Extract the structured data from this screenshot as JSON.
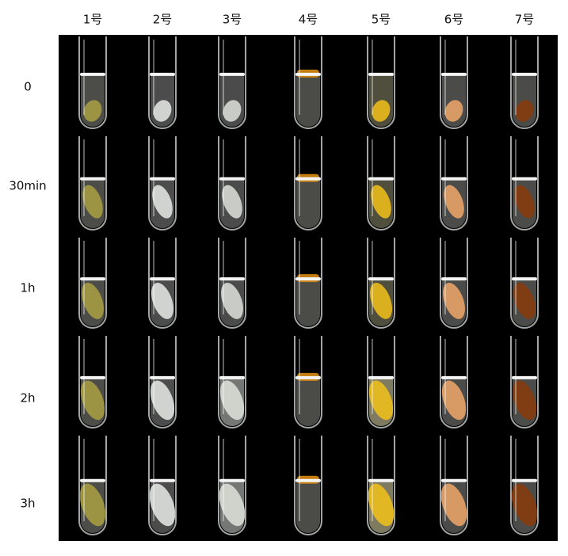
{
  "columns": [
    "1号",
    "2号",
    "3号",
    "4号",
    "5号",
    "6号",
    "7号"
  ],
  "rows": [
    "0",
    "30min",
    "1h",
    "2h",
    "3h"
  ]
}
